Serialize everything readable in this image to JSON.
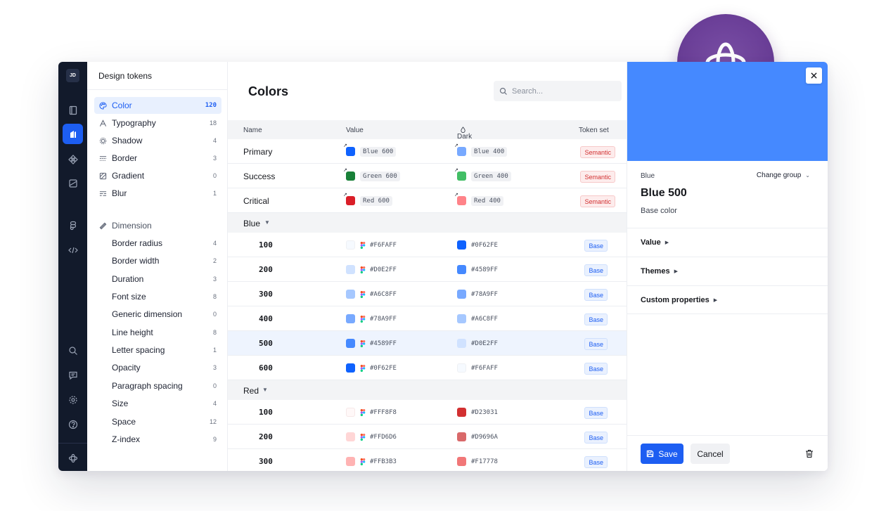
{
  "user": {
    "initials": "JD"
  },
  "rail": {
    "icons": [
      "book-icon",
      "tokens-icon",
      "components-icon",
      "image-icon",
      "figma-icon",
      "code-icon",
      "search-icon",
      "comment-icon",
      "settings-icon",
      "help-icon",
      "logo-icon"
    ]
  },
  "sidebar": {
    "title": "Design tokens",
    "categories": [
      {
        "label": "Color",
        "count": "120",
        "icon": "palette-icon",
        "active": true
      },
      {
        "label": "Typography",
        "count": "18",
        "icon": "typography-icon"
      },
      {
        "label": "Shadow",
        "count": "4",
        "icon": "shadow-icon"
      },
      {
        "label": "Border",
        "count": "3",
        "icon": "border-icon"
      },
      {
        "label": "Gradient",
        "count": "0",
        "icon": "gradient-icon"
      },
      {
        "label": "Blur",
        "count": "1",
        "icon": "blur-icon"
      }
    ],
    "dimension_label": "Dimension",
    "dimensions": [
      {
        "label": "Border radius",
        "count": "4"
      },
      {
        "label": "Border width",
        "count": "2"
      },
      {
        "label": "Duration",
        "count": "3"
      },
      {
        "label": "Font size",
        "count": "8"
      },
      {
        "label": "Generic dimension",
        "count": "0"
      },
      {
        "label": "Line height",
        "count": "8"
      },
      {
        "label": "Letter spacing",
        "count": "1"
      },
      {
        "label": "Opacity",
        "count": "3"
      },
      {
        "label": "Paragraph spacing",
        "count": "0"
      },
      {
        "label": "Size",
        "count": "4"
      },
      {
        "label": "Space",
        "count": "12"
      },
      {
        "label": "Z-index",
        "count": "9"
      }
    ]
  },
  "main": {
    "title": "Colors",
    "search_placeholder": "Search...",
    "columns": {
      "name": "Name",
      "value": "Value",
      "dark": "Dark",
      "token_set": "Token set"
    },
    "semantic_rows": [
      {
        "name": "Primary",
        "value": "Blue 600",
        "value_color": "#0F62FE",
        "dark": "Blue 400",
        "dark_color": "#78A9FF",
        "set": "Semantic"
      },
      {
        "name": "Success",
        "value": "Green 600",
        "value_color": "#198038",
        "dark": "Green 400",
        "dark_color": "#42BE65",
        "set": "Semantic"
      },
      {
        "name": "Critical",
        "value": "Red 600",
        "value_color": "#DA1E28",
        "dark": "Red 400",
        "dark_color": "#FF8389",
        "set": "Semantic"
      }
    ],
    "groups": [
      {
        "label": "Blue",
        "rows": [
          {
            "name": "100",
            "value": "#F6FAFF",
            "dark": "#0F62FE",
            "set": "Base"
          },
          {
            "name": "200",
            "value": "#D0E2FF",
            "dark": "#4589FF",
            "set": "Base"
          },
          {
            "name": "300",
            "value": "#A6C8FF",
            "dark": "#78A9FF",
            "set": "Base"
          },
          {
            "name": "400",
            "value": "#78A9FF",
            "dark": "#A6C8FF",
            "set": "Base"
          },
          {
            "name": "500",
            "value": "#4589FF",
            "dark": "#D0E2FF",
            "set": "Base",
            "selected": true
          },
          {
            "name": "600",
            "value": "#0F62FE",
            "dark": "#F6FAFF",
            "set": "Base"
          }
        ]
      },
      {
        "label": "Red",
        "rows": [
          {
            "name": "100",
            "value": "#FFF8F8",
            "dark": "#D23031",
            "set": "Base"
          },
          {
            "name": "200",
            "value": "#FFD6D6",
            "dark": "#D9696A",
            "set": "Base"
          },
          {
            "name": "300",
            "value": "#FFB3B3",
            "dark": "#F17778",
            "set": "Base"
          }
        ]
      }
    ]
  },
  "panel": {
    "hero_color": "#4589FF",
    "group": "Blue",
    "change_group": "Change group",
    "title": "Blue 500",
    "description": "Base color",
    "sections": [
      "Value",
      "Themes",
      "Custom properties"
    ],
    "save_label": "Save",
    "cancel_label": "Cancel"
  },
  "colors": {
    "accent": "#1D5EF2",
    "rail_bg": "#121A2B",
    "semantic": "#D23031",
    "badge_purple": "#6B3F98"
  }
}
